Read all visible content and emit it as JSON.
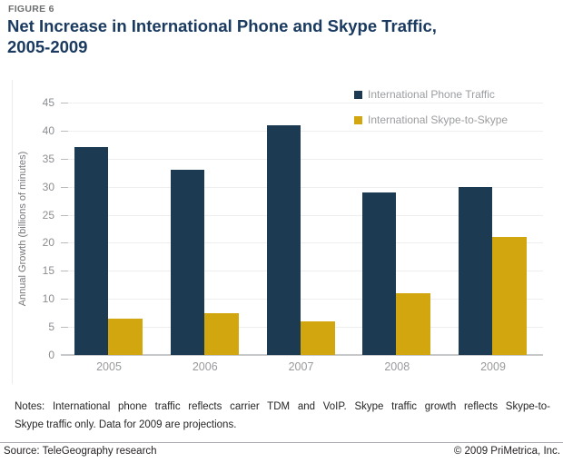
{
  "header": {
    "figure_label": "FIGURE 6",
    "title_line1": "Net Increase in International Phone and Skype Traffic,",
    "title_line2": "2005-2009"
  },
  "chart_data": {
    "type": "bar",
    "categories": [
      "2005",
      "2006",
      "2007",
      "2008",
      "2009"
    ],
    "series": [
      {
        "name": "International Phone Traffic",
        "color": "#1d3a53",
        "values": [
          37,
          33,
          41,
          29,
          30
        ]
      },
      {
        "name": "International Skype-to-Skype",
        "color": "#d2a60f",
        "values": [
          6.5,
          7.5,
          6,
          11,
          21
        ]
      }
    ],
    "title": "Net Increase in International Phone and Skype Traffic, 2005-2009",
    "xlabel": "",
    "ylabel": "Annual Growth (billions of minutes)",
    "ylim": [
      0,
      45
    ],
    "ytick_step": 5,
    "grid": true,
    "legend_position": "top-right"
  },
  "footer": {
    "notes_line1": "Notes: International phone traffic reflects carrier TDM and VoIP. Skype traffic growth reflects Skype-to-",
    "notes_line2": "Skype traffic only. Data for 2009 are projections.",
    "source": "Source: TeleGeography research",
    "copyright": "© 2009 PriMetrica, Inc."
  },
  "colors": {
    "bar_phone": "#1d3a53",
    "bar_skype": "#d2a60f",
    "title_text": "#1a3a60",
    "figure_label_text": "#6e6f71",
    "axis_text": "#8b8d90",
    "xlabel_text": "#97999c",
    "legend_text": "#9b9da0",
    "gridline": "#eeeeef",
    "axis_line": "#c6c8ca",
    "tick_mark": "#b9bbbd",
    "notes_text": "#262626",
    "divider": "#a8aaad"
  }
}
